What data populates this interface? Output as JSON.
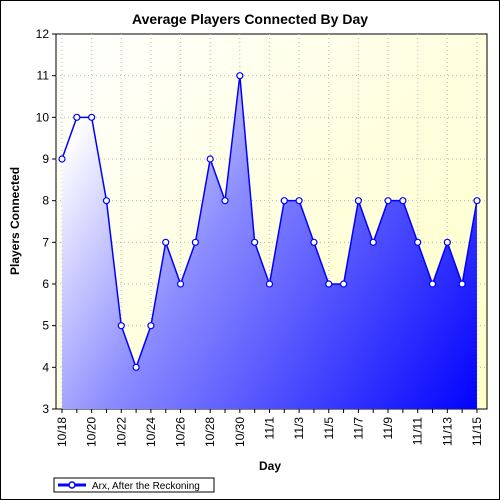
{
  "chart_data": {
    "type": "area",
    "title": "Average Players Connected By Day",
    "xlabel": "Day",
    "ylabel": "Players Connected",
    "ylim": [
      3,
      12
    ],
    "yticks": [
      3,
      4,
      5,
      6,
      7,
      8,
      9,
      10,
      11,
      12
    ],
    "x_tick_labels": [
      "10/18",
      "10/20",
      "10/22",
      "10/24",
      "10/26",
      "10/28",
      "10/30",
      "11/1",
      "11/3",
      "11/5",
      "11/7",
      "11/9",
      "11/11",
      "11/13",
      "11/15"
    ],
    "categories": [
      "10/18",
      "10/19",
      "10/20",
      "10/21",
      "10/22",
      "10/23",
      "10/24",
      "10/25",
      "10/26",
      "10/27",
      "10/28",
      "10/29",
      "10/30",
      "10/31",
      "11/1",
      "11/2",
      "11/3",
      "11/4",
      "11/5",
      "11/6",
      "11/7",
      "11/8",
      "11/9",
      "11/10",
      "11/11",
      "11/12",
      "11/13",
      "11/14",
      "11/15"
    ],
    "series": [
      {
        "name": "Arx, After the Reckoning",
        "values": [
          9,
          10,
          10,
          8,
          5,
          4,
          5,
          7,
          6,
          7,
          9,
          8,
          11,
          7,
          6,
          8,
          8,
          7,
          6,
          6,
          8,
          7,
          8,
          8,
          7,
          6,
          7,
          6,
          8
        ],
        "color": "#0000ff"
      }
    ],
    "grid": true,
    "legend": "bottom-left",
    "plot_background": "#ffffe0"
  }
}
